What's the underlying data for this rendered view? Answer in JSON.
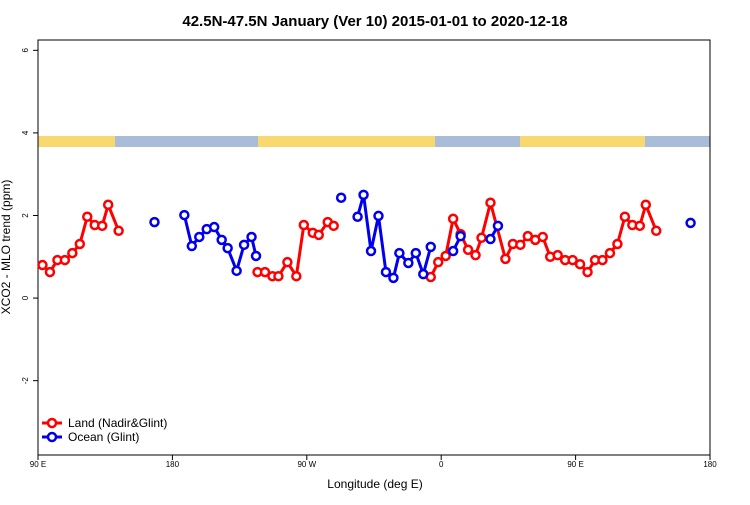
{
  "chart_data": {
    "type": "line",
    "title": "42.5N-47.5N January (Ver 10)   2015-01-01 to 2020-12-18",
    "x_label": "Longitude (deg E)",
    "y_label": "XCO2 - MLO trend (ppm)",
    "xlim": [
      90,
      540
    ],
    "xticks": [
      {
        "value": 90,
        "label": "90 E"
      },
      180,
      {
        "value": 270,
        "label": "90 W"
      },
      {
        "value": 360,
        "label": "0"
      },
      {
        "value": 450,
        "label": "90 E"
      },
      {
        "value": 540,
        "label": "180"
      }
    ],
    "ylim": [
      -3.8,
      6.25
    ],
    "yticks": [
      -2,
      0,
      2,
      4,
      6
    ],
    "legend": "bottom-left",
    "series": [
      {
        "name": "Land (Nadir&Glint)",
        "color": "#ff0000",
        "x": [
          93,
          98,
          103,
          108,
          113,
          118,
          123,
          128,
          133,
          137,
          144,
          null,
          237,
          242,
          247,
          251,
          257,
          263,
          268,
          274,
          278,
          284,
          288,
          null,
          353,
          358,
          363,
          368,
          373,
          378,
          383,
          387,
          393,
          403,
          408,
          413,
          418,
          423,
          428,
          433,
          438,
          443,
          448,
          453,
          458,
          463,
          468,
          473,
          478,
          483,
          488,
          493,
          497,
          504
        ],
        "values": [
          0.8,
          0.63,
          0.92,
          0.92,
          1.09,
          1.31,
          1.97,
          1.77,
          1.75,
          2.26,
          1.63,
          null,
          0.63,
          0.63,
          0.53,
          0.53,
          0.87,
          0.53,
          1.77,
          1.58,
          1.53,
          1.84,
          1.75,
          null,
          0.51,
          0.87,
          1.02,
          1.92,
          1.55,
          1.17,
          1.04,
          1.46,
          2.31,
          0.95,
          1.31,
          1.29,
          1.5,
          1.41,
          1.48,
          1.0,
          1.04,
          0.92,
          0.92,
          0.82,
          0.63,
          0.92,
          0.92,
          1.09,
          1.31,
          1.97,
          1.77,
          1.75,
          2.26,
          1.63
        ]
      },
      {
        "name": "Ocean (Glint)",
        "color": "#0000ee",
        "x": [
          168,
          null,
          188,
          193,
          198,
          203,
          208,
          213,
          217,
          223,
          228,
          233,
          236,
          null,
          293,
          null,
          304,
          308,
          313,
          318,
          323,
          328,
          332,
          338,
          343,
          348,
          353,
          null,
          368,
          373,
          null,
          393,
          398,
          null,
          527
        ],
        "values": [
          1.84,
          null,
          2.01,
          1.26,
          1.48,
          1.67,
          1.72,
          1.41,
          1.21,
          0.66,
          1.29,
          1.48,
          1.02,
          null,
          2.43,
          null,
          1.97,
          2.5,
          1.14,
          1.99,
          0.63,
          0.49,
          1.09,
          0.85,
          1.09,
          0.58,
          1.24,
          null,
          1.14,
          1.5,
          null,
          1.43,
          1.75,
          null,
          1.82
        ]
      }
    ]
  }
}
